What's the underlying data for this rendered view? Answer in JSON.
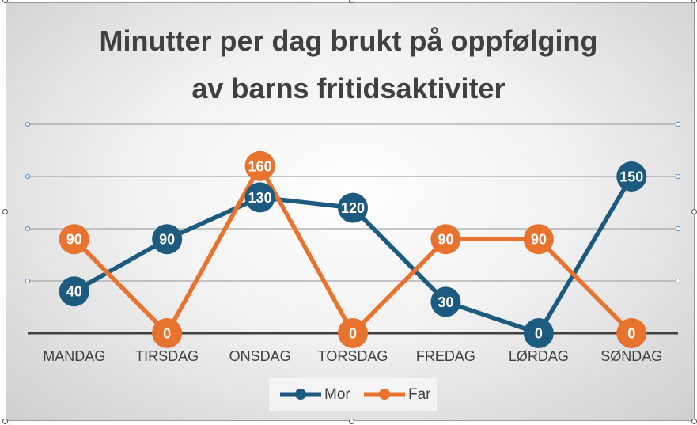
{
  "chart_data": {
    "type": "line",
    "title": [
      "Minutter per dag brukt på oppfølging",
      "av barns fritidsaktiviter"
    ],
    "categories": [
      "MANDAG",
      "TIRSDAG",
      "ONSDAG",
      "TORSDAG",
      "FREDAG",
      "LØRDAG",
      "SØNDAG"
    ],
    "series": [
      {
        "name": "Mor",
        "color": "#1c5a80",
        "values": [
          40,
          90,
          130,
          120,
          30,
          0,
          150
        ]
      },
      {
        "name": "Far",
        "color": "#e8732e",
        "values": [
          90,
          0,
          160,
          0,
          90,
          90,
          0
        ]
      }
    ],
    "ylim": [
      0,
      200
    ],
    "gridlines": [
      50,
      100,
      150,
      200
    ],
    "grid": true,
    "data_labels": true,
    "legend_position": "bottom",
    "colors": {
      "axis": "#404040",
      "grid": "#a6a6a6",
      "label_text": "#ffffff"
    }
  }
}
